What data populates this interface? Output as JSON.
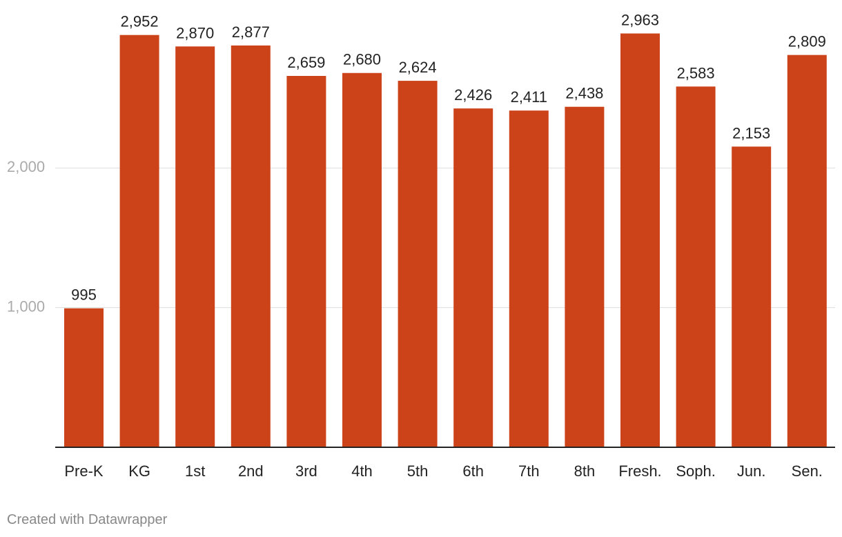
{
  "chart_data": {
    "type": "bar",
    "title": "",
    "xlabel": "",
    "ylabel": "",
    "categories": [
      "Pre-K",
      "KG",
      "1st",
      "2nd",
      "3rd",
      "4th",
      "5th",
      "6th",
      "7th",
      "8th",
      "Fresh.",
      "Soph.",
      "Jun.",
      "Sen."
    ],
    "values": [
      995,
      2952,
      2870,
      2877,
      2659,
      2680,
      2624,
      2426,
      2411,
      2438,
      2963,
      2583,
      2153,
      2809
    ],
    "value_labels": [
      "995",
      "2,952",
      "2,870",
      "2,877",
      "2,659",
      "2,680",
      "2,624",
      "2,426",
      "2,411",
      "2,438",
      "2,963",
      "2,583",
      "2,153",
      "2,809"
    ],
    "yticks": [
      1000,
      2000
    ],
    "ytick_labels": [
      "1,000",
      "2,000"
    ],
    "ylim": [
      0,
      3000
    ],
    "grid": true,
    "legend": "none",
    "bar_color": "#cc4219"
  },
  "footer": {
    "credit": "Created with Datawrapper"
  }
}
